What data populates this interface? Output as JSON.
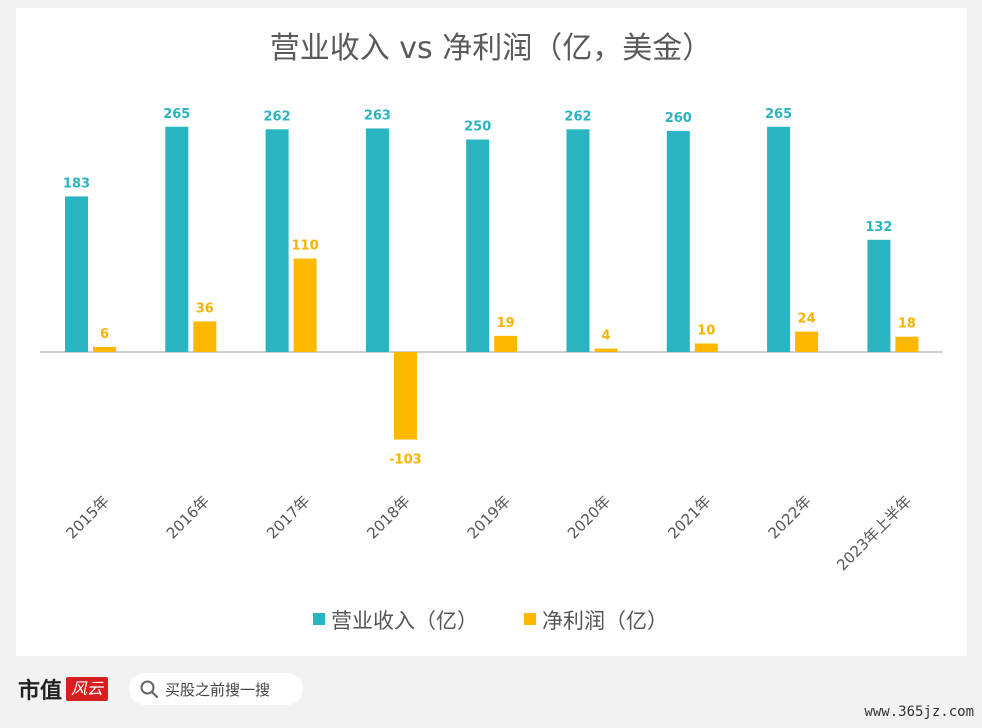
{
  "chart_data": {
    "type": "bar",
    "title": "营业收入 vs 净利润（亿，美金）",
    "categories": [
      "2015年",
      "2016年",
      "2017年",
      "2018年",
      "2019年",
      "2020年",
      "2021年",
      "2022年",
      "2023年上半年"
    ],
    "series": [
      {
        "name": "营业收入（亿）",
        "values": [
          183,
          265,
          262,
          263,
          250,
          262,
          260,
          265,
          132
        ],
        "color": "#2ab3c0"
      },
      {
        "name": "净利润（亿）",
        "values": [
          6,
          36,
          110,
          -103,
          19,
          4,
          10,
          24,
          18
        ],
        "color": "#ffb800"
      }
    ],
    "ylim": [
      -103,
      265
    ],
    "grid": false,
    "legend": "bottom"
  },
  "footer": {
    "brand": "市值",
    "brand_seal": "风云",
    "search_placeholder": "买股之前搜一搜",
    "site_url": "www.365jz.com"
  }
}
